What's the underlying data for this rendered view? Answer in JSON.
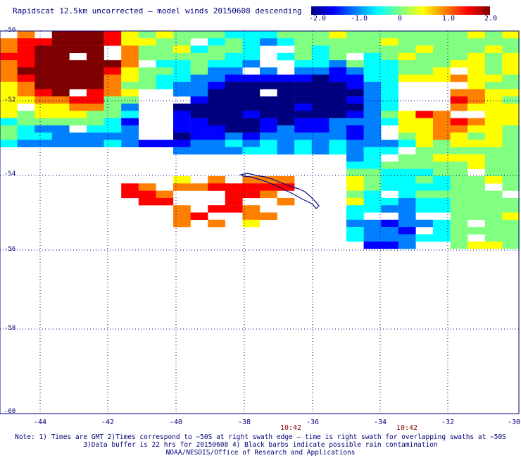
{
  "title": "Rapidscat 12.5km uncorrected — model winds 20150608 descending",
  "colorbar": {
    "ticks": [
      "-2.0",
      "-1.0",
      "0",
      "1.0",
      "2.0"
    ],
    "colors": [
      "#00007f",
      "#0000ff",
      "#0080ff",
      "#00ffff",
      "#80ff80",
      "#ffff00",
      "#ff8000",
      "#ff0000",
      "#7f0000"
    ]
  },
  "map": {
    "lon_labels": [
      "-44",
      "-42",
      "-40",
      "-38",
      "-36",
      "-34",
      "-32",
      "-30"
    ],
    "lat_labels": [
      "-50",
      "-52",
      "-54",
      "-56",
      "-58",
      "-60"
    ],
    "lon_range": [
      -44.8,
      -30
    ],
    "lat_range": [
      -50,
      -60
    ],
    "grid": "dotted",
    "coastline": "South Georgia"
  },
  "times": [
    "10:42",
    "10:42"
  ],
  "notes": [
    "Note: 1) Times are GMT 2)Times correspond to −50S at right swath edge — time is right swath for overlapping swaths at −50S",
    "3)Data buffer is 22 hrs for 20150608 4) Black barbs indicate possible rain contamination",
    "NOAA/NESDIS/Office of Research and Applications"
  ]
}
